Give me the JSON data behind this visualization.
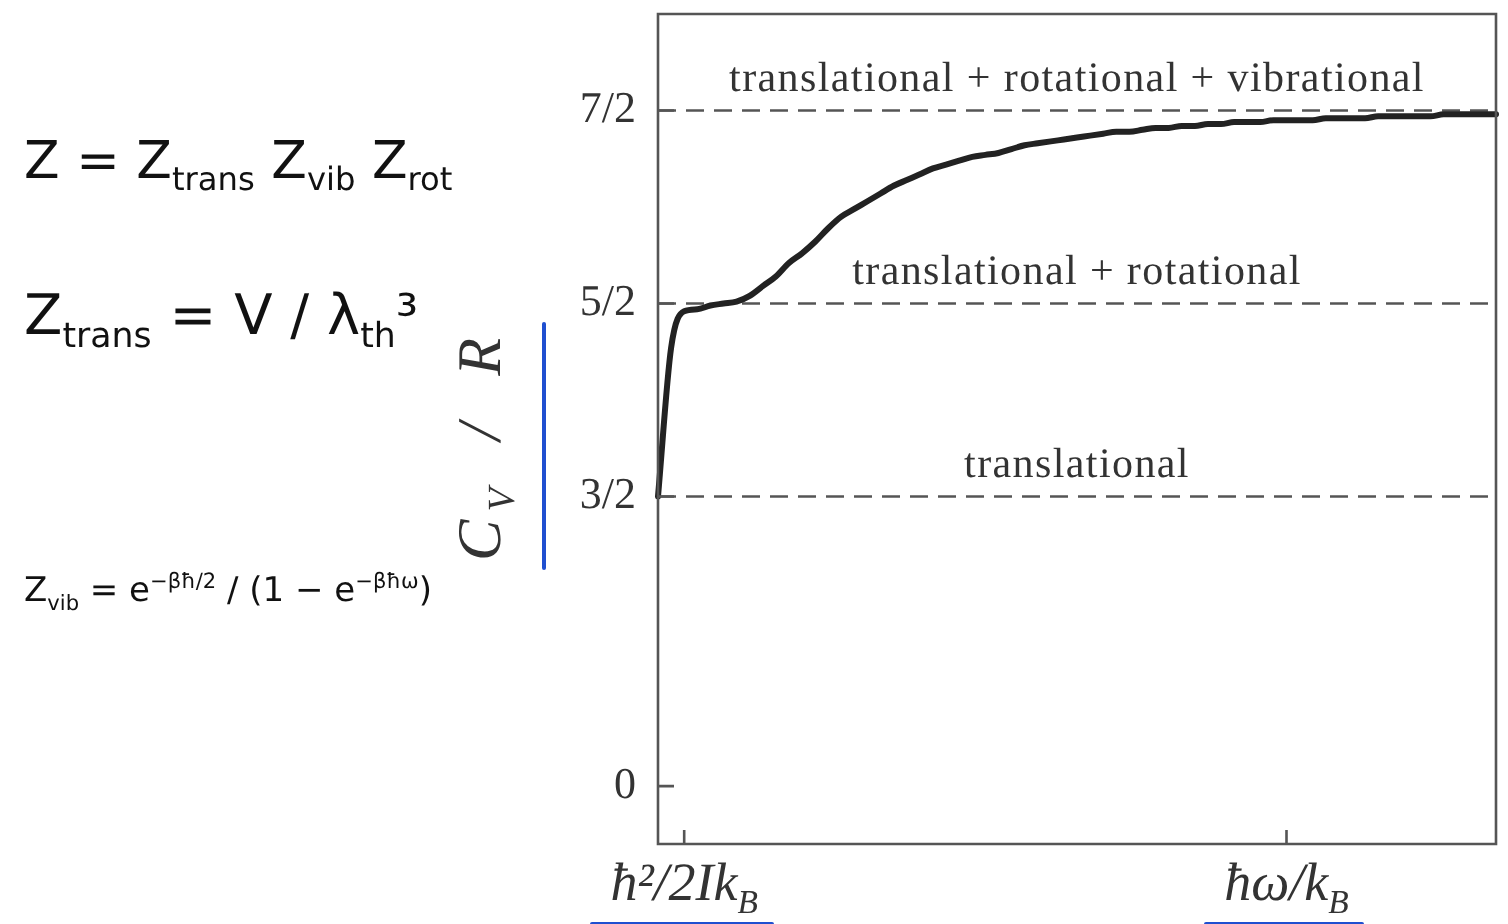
{
  "chart_data": {
    "type": "line",
    "ylabel": "C$_{V}$ / R",
    "categories": [
      null,
      null,
      "ħ²/2Ik$_{B}$",
      null,
      null,
      null,
      null,
      null,
      null,
      null,
      null,
      null,
      null,
      null,
      null,
      null,
      null,
      null,
      null,
      null,
      null,
      null,
      null,
      null,
      null,
      null,
      null,
      null,
      null,
      null,
      null,
      null,
      null,
      null,
      null,
      null,
      null,
      null,
      null,
      null,
      null,
      null,
      null,
      null,
      null,
      null,
      null,
      null,
      "ħω/k$_{B}$",
      null,
      null,
      null,
      null,
      null,
      null,
      null,
      null,
      null,
      null,
      null,
      null,
      null,
      null,
      null,
      null
    ],
    "values": [
      1.5,
      2.27,
      2.46,
      2.47,
      2.49,
      2.5,
      2.51,
      2.54,
      2.59,
      2.64,
      2.71,
      2.76,
      2.82,
      2.89,
      2.95,
      2.99,
      3.03,
      3.07,
      3.11,
      3.14,
      3.17,
      3.2,
      3.22,
      3.24,
      3.26,
      3.27,
      3.28,
      3.3,
      3.32,
      3.33,
      3.34,
      3.35,
      3.36,
      3.37,
      3.38,
      3.39,
      3.39,
      3.4,
      3.41,
      3.41,
      3.42,
      3.42,
      3.43,
      3.43,
      3.44,
      3.44,
      3.44,
      3.45,
      3.45,
      3.45,
      3.45,
      3.46,
      3.46,
      3.46,
      3.46,
      3.47,
      3.47,
      3.47,
      3.47,
      3.47,
      3.48,
      3.48,
      3.48,
      3.48,
      3.48
    ],
    "color": "#222222",
    "marker": "none",
    "ylim": [
      -0.3,
      4
    ],
    "yticks": [
      0,
      {
        "value": 1.5,
        "label": "3/2"
      },
      {
        "value": 2.5,
        "label": "5/2"
      },
      {
        "value": 3.5,
        "label": "7/2"
      }
    ],
    "ref_lines": [
      {
        "axis": "y",
        "value": 1.5,
        "label": "translational",
        "color": "#555555",
        "line_style": "dashed"
      },
      {
        "axis": "y",
        "value": 2.5,
        "label": "translational + rotational",
        "color": "#555555",
        "line_style": "dashed"
      },
      {
        "axis": "y",
        "value": 3.5,
        "label": "translational + rotational + vibrational",
        "color": "#555555",
        "line_style": "dashed"
      }
    ],
    "annotations": [
      "Z = Z$_{trans}$ Z$_{vib}$ Z$_{rot}$",
      "Z$_{trans}$ = V / λ$_{th}$³",
      "Z$_{vib}$ = e$^{−βħ/2}$ / (1 − e$^{−βħω}$)"
    ]
  }
}
